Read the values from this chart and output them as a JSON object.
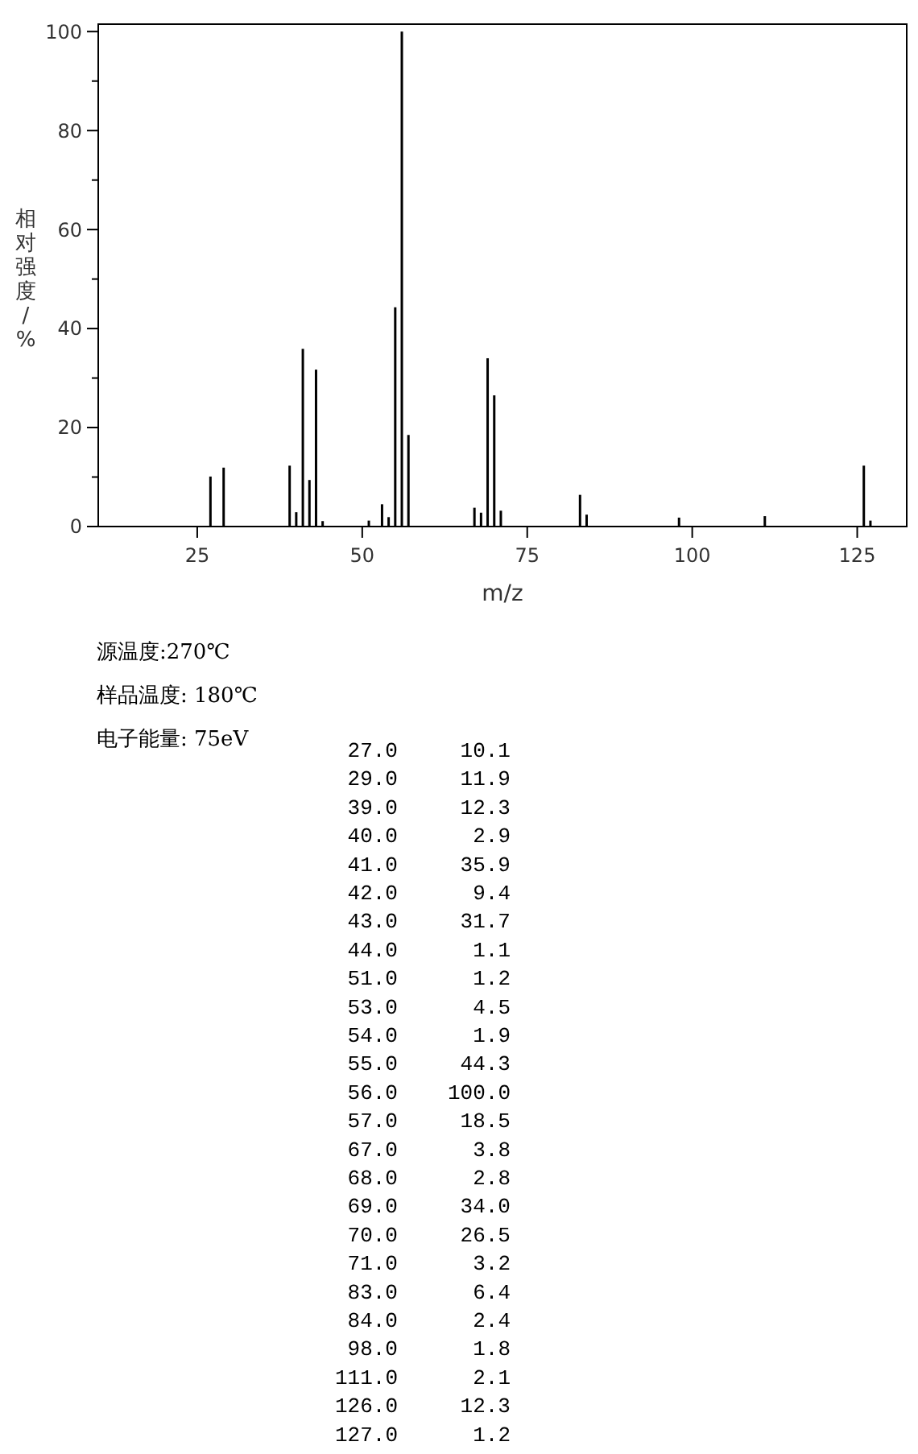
{
  "chart_data": {
    "type": "bar",
    "xlabel": "m/z",
    "ylabel": "相对强度/%",
    "x": [
      27,
      29,
      39,
      40,
      41,
      42,
      43,
      44,
      51,
      53,
      54,
      55,
      56,
      57,
      67,
      68,
      69,
      70,
      71,
      83,
      84,
      98,
      111,
      126,
      127
    ],
    "values": [
      10.1,
      11.9,
      12.3,
      2.9,
      35.9,
      9.4,
      31.7,
      1.1,
      1.2,
      4.5,
      1.9,
      44.3,
      100.0,
      18.5,
      3.8,
      2.8,
      34.0,
      26.5,
      3.2,
      6.4,
      2.4,
      1.8,
      2.1,
      12.3,
      1.2
    ],
    "color": "#000000",
    "xlim": [
      10,
      132.5
    ],
    "xticks": [
      25,
      50,
      75,
      100,
      125
    ],
    "ylim": [
      0,
      101.5
    ],
    "yticks": [
      0,
      {
        "value": 10,
        "label": null
      },
      20,
      {
        "value": 30,
        "label": null
      },
      40,
      {
        "value": 50,
        "label": null
      },
      60,
      {
        "value": 70,
        "label": null
      },
      80,
      {
        "value": 90,
        "label": null
      },
      100
    ],
    "grid": false,
    "legend": false,
    "annotations": [
      "源温度:270℃",
      "样品温度: 180℃",
      "电子能量: 75eV",
      "27.0",
      "29.0",
      "39.0",
      "40.0",
      "41.0",
      "42.0",
      "43.0",
      "44.0",
      "51.0",
      "53.0",
      "54.0",
      "55.0",
      "56.0",
      "57.0",
      "67.0",
      "68.0",
      "69.0",
      "70.0",
      "71.0",
      "83.0",
      "84.0",
      "98.0",
      "111.0",
      "126.0",
      "127.0",
      "10.1",
      "11.9",
      "12.3",
      "2.9",
      "35.9",
      "9.4",
      "31.7",
      "1.1",
      "1.2",
      "4.5",
      "1.9",
      "44.3",
      "100.0",
      "18.5",
      "3.8",
      "2.8",
      "34.0",
      "26.5",
      "3.2",
      "6.4",
      "2.4",
      "1.8",
      "2.1",
      "12.3",
      "1.2"
    ]
  }
}
